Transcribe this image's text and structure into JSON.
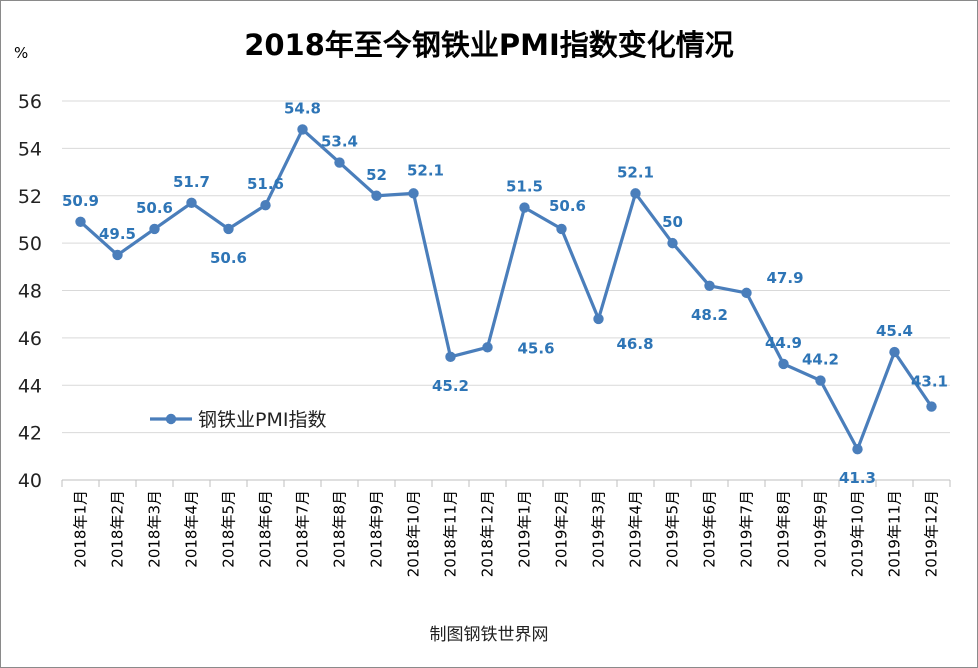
{
  "chart_data": {
    "type": "line",
    "title": "2018年至今钢铁业PMI指数变化情况",
    "ylabel": "%",
    "xlabel": "",
    "ylim": [
      40,
      56
    ],
    "yticks": [
      40,
      42,
      44,
      46,
      48,
      50,
      52,
      54,
      56
    ],
    "grid": true,
    "legend_position": "left",
    "categories": [
      "2018年1月",
      "2018年2月",
      "2018年3月",
      "2018年4月",
      "2018年5月",
      "2018年6月",
      "2018年7月",
      "2018年8月",
      "2018年9月",
      "2018年10月",
      "2018年11月",
      "2018年12月",
      "2019年1月",
      "2019年2月",
      "2019年3月",
      "2019年4月",
      "2019年5月",
      "2019年6月",
      "2019年7月",
      "2019年8月",
      "2019年9月",
      "2019年10月",
      "2019年11月",
      "2019年12月"
    ],
    "series": [
      {
        "name": "钢铁业PMI指数",
        "color": "#4a7ebb",
        "values": [
          50.9,
          49.5,
          50.6,
          51.7,
          50.6,
          51.6,
          54.8,
          53.4,
          52,
          52.1,
          45.2,
          45.6,
          51.5,
          50.6,
          46.8,
          52.1,
          50,
          48.2,
          47.9,
          44.9,
          44.2,
          41.3,
          45.4,
          43.1
        ]
      }
    ],
    "source": "制图钢铁世界网"
  }
}
